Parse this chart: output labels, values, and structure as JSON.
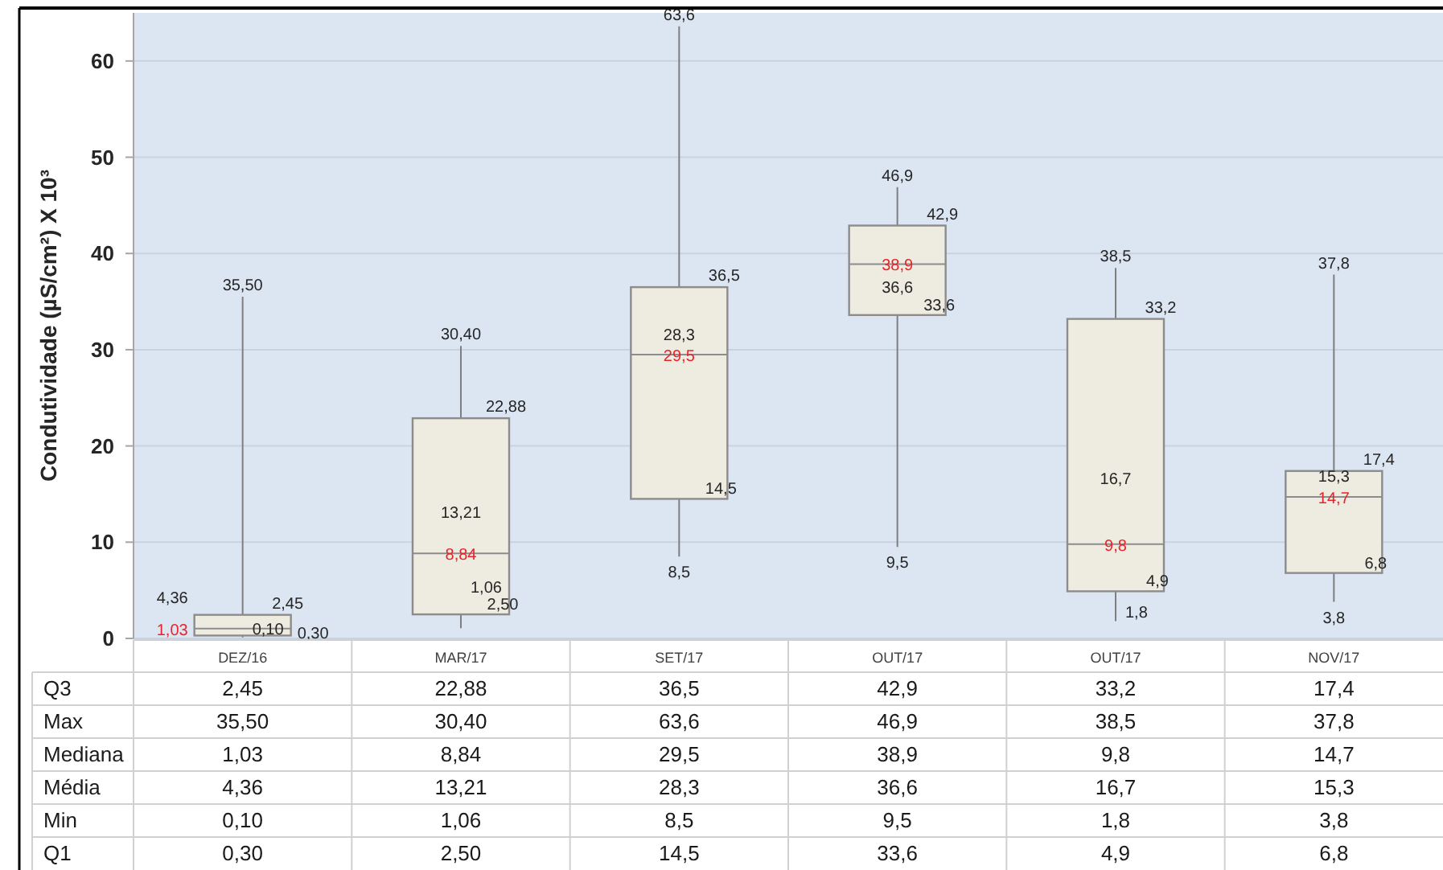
{
  "chart_data": {
    "type": "box",
    "ylabel": "Condutividade (µS/cm²) X 10³",
    "categories": [
      "DEZ/16",
      "MAR/17",
      "SET/17",
      "OUT/17",
      "OUT/17",
      "NOV/17"
    ],
    "boxes": [
      {
        "low": 0.1,
        "q1": 0.3,
        "median": 1.03,
        "q3": 2.45,
        "high": 35.5
      },
      {
        "low": 1.06,
        "q1": 2.5,
        "median": 8.84,
        "q3": 22.88,
        "high": 30.4
      },
      {
        "low": 8.5,
        "q1": 14.5,
        "median": 29.5,
        "q3": 36.5,
        "high": 63.6
      },
      {
        "low": 9.5,
        "q1": 33.6,
        "median": 38.9,
        "q3": 42.9,
        "high": 46.9
      },
      {
        "low": 1.8,
        "q1": 4.9,
        "median": 9.8,
        "q3": 33.2,
        "high": 38.5
      },
      {
        "low": 3.8,
        "q1": 6.8,
        "median": 14.7,
        "q3": 17.4,
        "high": 37.8
      }
    ],
    "y_categories": [
      "Q3",
      "Max",
      "Mediana",
      "Média",
      "Min",
      "Q1"
    ],
    "value_labels": [
      [
        "2,45",
        "35,50",
        "1,03",
        "4,36",
        "0,10",
        "0,30"
      ],
      [
        "22,88",
        "30,40",
        "8,84",
        "13,21",
        "1,06",
        "2,50"
      ],
      [
        "36,5",
        "63,6",
        "29,5",
        "28,3",
        "8,5",
        "14,5"
      ],
      [
        "42,9",
        "46,9",
        "38,9",
        "36,6",
        "9,5",
        "33,6"
      ],
      [
        "33,2",
        "38,5",
        "9,8",
        "16,7",
        "1,8",
        "4,9"
      ],
      [
        "17,4",
        "37,8",
        "14,7",
        "15,3",
        "3,8",
        "6,8"
      ]
    ],
    "data_labels": true,
    "color": "#eeebe0",
    "ylim": [
      0,
      65
    ],
    "yticks": [
      0,
      10,
      20,
      30,
      40,
      50,
      60
    ],
    "grid": "y"
  }
}
